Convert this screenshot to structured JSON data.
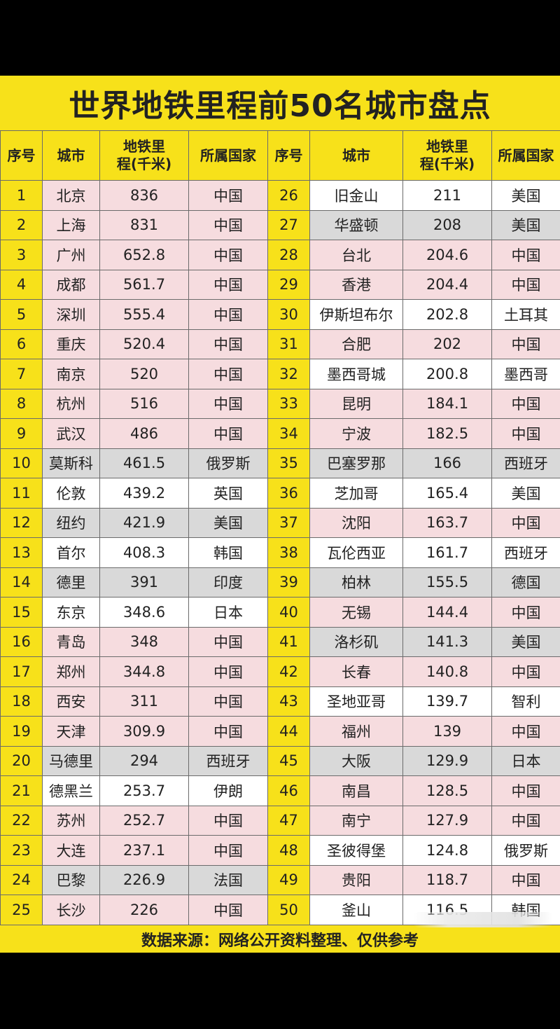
{
  "title": "世界地铁里程前50名城市盘点",
  "headers": [
    "序号",
    "城市",
    "地铁里\n程(千米)",
    "所属国家",
    "序号",
    "城市",
    "地铁里\n程(千米)",
    "所属国家"
  ],
  "rows": [
    {
      "left": [
        "1",
        "北京",
        "836",
        "中国"
      ],
      "right": [
        "26",
        "旧金山",
        "211",
        "美国"
      ],
      "shade": [
        "pink",
        "white"
      ]
    },
    {
      "left": [
        "2",
        "上海",
        "831",
        "中国"
      ],
      "right": [
        "27",
        "华盛顿",
        "208",
        "美国"
      ],
      "shade": [
        "pink",
        "gray"
      ]
    },
    {
      "left": [
        "3",
        "广州",
        "652.8",
        "中国"
      ],
      "right": [
        "28",
        "台北",
        "204.6",
        "中国"
      ],
      "shade": [
        "pink",
        "pink"
      ]
    },
    {
      "left": [
        "4",
        "成都",
        "561.7",
        "中国"
      ],
      "right": [
        "29",
        "香港",
        "204.4",
        "中国"
      ],
      "shade": [
        "pink",
        "pink"
      ]
    },
    {
      "left": [
        "5",
        "深圳",
        "555.4",
        "中国"
      ],
      "right": [
        "30",
        "伊斯坦布尔",
        "202.8",
        "土耳其"
      ],
      "shade": [
        "pink",
        "white"
      ]
    },
    {
      "left": [
        "6",
        "重庆",
        "520.4",
        "中国"
      ],
      "right": [
        "31",
        "合肥",
        "202",
        "中国"
      ],
      "shade": [
        "pink",
        "pink"
      ]
    },
    {
      "left": [
        "7",
        "南京",
        "520",
        "中国"
      ],
      "right": [
        "32",
        "墨西哥城",
        "200.8",
        "墨西哥"
      ],
      "shade": [
        "pink",
        "white"
      ]
    },
    {
      "left": [
        "8",
        "杭州",
        "516",
        "中国"
      ],
      "right": [
        "33",
        "昆明",
        "184.1",
        "中国"
      ],
      "shade": [
        "pink",
        "pink"
      ]
    },
    {
      "left": [
        "9",
        "武汉",
        "486",
        "中国"
      ],
      "right": [
        "34",
        "宁波",
        "182.5",
        "中国"
      ],
      "shade": [
        "pink",
        "pink"
      ]
    },
    {
      "left": [
        "10",
        "莫斯科",
        "461.5",
        "俄罗斯"
      ],
      "right": [
        "35",
        "巴塞罗那",
        "166",
        "西班牙"
      ],
      "shade": [
        "gray",
        "gray"
      ]
    },
    {
      "left": [
        "11",
        "伦敦",
        "439.2",
        "英国"
      ],
      "right": [
        "36",
        "芝加哥",
        "165.4",
        "美国"
      ],
      "shade": [
        "white",
        "white"
      ]
    },
    {
      "left": [
        "12",
        "纽约",
        "421.9",
        "美国"
      ],
      "right": [
        "37",
        "沈阳",
        "163.7",
        "中国"
      ],
      "shade": [
        "gray",
        "pink"
      ]
    },
    {
      "left": [
        "13",
        "首尔",
        "408.3",
        "韩国"
      ],
      "right": [
        "38",
        "瓦伦西亚",
        "161.7",
        "西班牙"
      ],
      "shade": [
        "white",
        "white"
      ]
    },
    {
      "left": [
        "14",
        "德里",
        "391",
        "印度"
      ],
      "right": [
        "39",
        "柏林",
        "155.5",
        "德国"
      ],
      "shade": [
        "gray",
        "gray"
      ]
    },
    {
      "left": [
        "15",
        "东京",
        "348.6",
        "日本"
      ],
      "right": [
        "40",
        "无锡",
        "144.4",
        "中国"
      ],
      "shade": [
        "white",
        "pink"
      ]
    },
    {
      "left": [
        "16",
        "青岛",
        "348",
        "中国"
      ],
      "right": [
        "41",
        "洛杉矶",
        "141.3",
        "美国"
      ],
      "shade": [
        "pink",
        "gray"
      ]
    },
    {
      "left": [
        "17",
        "郑州",
        "344.8",
        "中国"
      ],
      "right": [
        "42",
        "长春",
        "140.8",
        "中国"
      ],
      "shade": [
        "pink",
        "pink"
      ]
    },
    {
      "left": [
        "18",
        "西安",
        "311",
        "中国"
      ],
      "right": [
        "43",
        "圣地亚哥",
        "139.7",
        "智利"
      ],
      "shade": [
        "pink",
        "white"
      ]
    },
    {
      "left": [
        "19",
        "天津",
        "309.9",
        "中国"
      ],
      "right": [
        "44",
        "福州",
        "139",
        "中国"
      ],
      "shade": [
        "pink",
        "pink"
      ]
    },
    {
      "left": [
        "20",
        "马德里",
        "294",
        "西班牙"
      ],
      "right": [
        "45",
        "大阪",
        "129.9",
        "日本"
      ],
      "shade": [
        "gray",
        "gray"
      ]
    },
    {
      "left": [
        "21",
        "德黑兰",
        "253.7",
        "伊朗"
      ],
      "right": [
        "46",
        "南昌",
        "128.5",
        "中国"
      ],
      "shade": [
        "white",
        "pink"
      ]
    },
    {
      "left": [
        "22",
        "苏州",
        "252.7",
        "中国"
      ],
      "right": [
        "47",
        "南宁",
        "127.9",
        "中国"
      ],
      "shade": [
        "pink",
        "pink"
      ]
    },
    {
      "left": [
        "23",
        "大连",
        "237.1",
        "中国"
      ],
      "right": [
        "48",
        "圣彼得堡",
        "124.8",
        "俄罗斯"
      ],
      "shade": [
        "pink",
        "white"
      ]
    },
    {
      "left": [
        "24",
        "巴黎",
        "226.9",
        "法国"
      ],
      "right": [
        "49",
        "贵阳",
        "118.7",
        "中国"
      ],
      "shade": [
        "gray",
        "pink"
      ]
    },
    {
      "left": [
        "25",
        "长沙",
        "226",
        "中国"
      ],
      "right": [
        "50",
        "釜山",
        "116.5",
        "韩国"
      ],
      "shade": [
        "pink",
        "white"
      ]
    }
  ],
  "footer": "数据来源：网络公开资料整理、仅供参考"
}
